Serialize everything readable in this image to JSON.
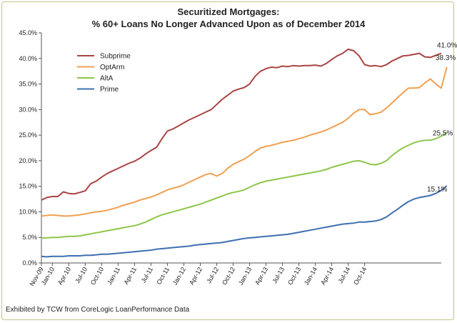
{
  "chart_data": {
    "type": "line",
    "title": "Securitized Mortgages:",
    "subtitle": "% 60+ Loans No Longer Advanced Upon as of December 2014",
    "footer": "Exhibited by TCW from CoreLogic LoanPerformance Data",
    "xlabel": "",
    "ylabel": "",
    "ylim": [
      0,
      45
    ],
    "yticks": [
      "0.0%",
      "5.0%",
      "10.0%",
      "15.0%",
      "20.0%",
      "25.0%",
      "30.0%",
      "35.0%",
      "40.0%",
      "45.0%"
    ],
    "xticks": [
      "Nov-09",
      "Jan-10",
      "Apr-10",
      "Jul-10",
      "Oct-10",
      "Jan-11",
      "Apr-11",
      "Jul-11",
      "Oct-11",
      "Jan-12",
      "Apr-12",
      "Jul-12",
      "Oct-12",
      "Jan-13",
      "Apr-13",
      "Jul-13",
      "Oct-13",
      "Jan-14",
      "Apr-14",
      "Jul-14",
      "Oct-14"
    ],
    "legend_position": "top-left",
    "grid": false,
    "x_start": "Nov-09",
    "x_end": "Dec-14",
    "series": [
      {
        "name": "Subprime",
        "color": "#a94442",
        "end_label": "41.0%",
        "values": [
          12.3,
          12.8,
          13.0,
          13.0,
          13.9,
          13.6,
          13.5,
          13.8,
          14.1,
          15.5,
          16.0,
          16.8,
          17.5,
          18.0,
          18.5,
          19.0,
          19.5,
          19.9,
          20.5,
          21.3,
          22.0,
          22.6,
          24.3,
          25.8,
          26.2,
          26.8,
          27.4,
          28.0,
          28.5,
          29.0,
          29.5,
          30.0,
          31.0,
          32.0,
          32.8,
          33.6,
          34.0,
          34.3,
          35.0,
          36.5,
          37.5,
          38.0,
          38.3,
          38.2,
          38.5,
          38.4,
          38.6,
          38.5,
          38.6,
          38.6,
          38.7,
          38.5,
          39.0,
          39.8,
          40.5,
          41.0,
          41.8,
          41.5,
          40.5,
          38.8,
          38.5,
          38.6,
          38.4,
          38.8,
          39.5,
          40.0,
          40.5,
          40.6,
          40.8,
          41.0,
          40.3,
          40.2,
          40.6,
          41.0
        ]
      },
      {
        "name": "OptArm",
        "color": "#f0a050",
        "end_label": "38.3%",
        "values": [
          9.2,
          9.3,
          9.4,
          9.3,
          9.2,
          9.2,
          9.3,
          9.4,
          9.6,
          9.8,
          10.0,
          10.1,
          10.3,
          10.6,
          10.9,
          11.3,
          11.6,
          11.9,
          12.3,
          12.6,
          12.9,
          13.3,
          13.8,
          14.3,
          14.6,
          14.9,
          15.3,
          15.8,
          16.3,
          16.8,
          17.3,
          17.5,
          17.0,
          17.5,
          18.5,
          19.3,
          19.8,
          20.3,
          21.0,
          21.8,
          22.5,
          22.8,
          23.0,
          23.3,
          23.6,
          23.8,
          24.0,
          24.3,
          24.6,
          25.0,
          25.3,
          25.6,
          26.0,
          26.5,
          27.0,
          27.5,
          28.3,
          29.3,
          30.0,
          30.0,
          29.0,
          29.2,
          29.5,
          30.3,
          31.3,
          32.3,
          33.3,
          34.2,
          34.2,
          34.3,
          35.2,
          36.0,
          35.0,
          34.2,
          38.3
        ]
      },
      {
        "name": "AltA",
        "color": "#8dc64a",
        "end_label": "25.5%",
        "values": [
          4.9,
          4.9,
          5.0,
          5.0,
          5.1,
          5.2,
          5.2,
          5.3,
          5.5,
          5.7,
          5.9,
          6.1,
          6.3,
          6.5,
          6.7,
          6.9,
          7.1,
          7.3,
          7.6,
          8.0,
          8.5,
          9.0,
          9.4,
          9.7,
          10.0,
          10.3,
          10.6,
          10.9,
          11.2,
          11.5,
          11.9,
          12.3,
          12.7,
          13.1,
          13.5,
          13.8,
          14.0,
          14.3,
          14.8,
          15.3,
          15.7,
          16.0,
          16.2,
          16.4,
          16.6,
          16.8,
          17.0,
          17.2,
          17.4,
          17.6,
          17.8,
          18.0,
          18.3,
          18.7,
          19.0,
          19.3,
          19.6,
          19.9,
          20.0,
          19.7,
          19.3,
          19.2,
          19.5,
          20.0,
          21.0,
          21.8,
          22.5,
          23.0,
          23.5,
          23.8,
          24.0,
          24.0,
          24.3,
          24.8,
          25.5
        ]
      },
      {
        "name": "Prime",
        "color": "#3e6fb0",
        "end_label": "15.1%",
        "values": [
          1.3,
          1.2,
          1.3,
          1.3,
          1.3,
          1.4,
          1.4,
          1.4,
          1.5,
          1.5,
          1.6,
          1.7,
          1.7,
          1.8,
          1.9,
          2.0,
          2.1,
          2.2,
          2.3,
          2.4,
          2.5,
          2.7,
          2.8,
          2.9,
          3.0,
          3.1,
          3.2,
          3.3,
          3.5,
          3.6,
          3.7,
          3.8,
          3.9,
          4.0,
          4.2,
          4.4,
          4.6,
          4.8,
          4.9,
          5.0,
          5.1,
          5.2,
          5.3,
          5.4,
          5.5,
          5.6,
          5.8,
          6.0,
          6.2,
          6.4,
          6.6,
          6.8,
          7.0,
          7.2,
          7.4,
          7.6,
          7.7,
          7.8,
          8.0,
          8.0,
          8.1,
          8.2,
          8.5,
          9.0,
          9.8,
          10.5,
          11.3,
          12.0,
          12.5,
          12.8,
          13.0,
          13.2,
          13.6,
          14.2,
          15.1
        ]
      }
    ]
  }
}
